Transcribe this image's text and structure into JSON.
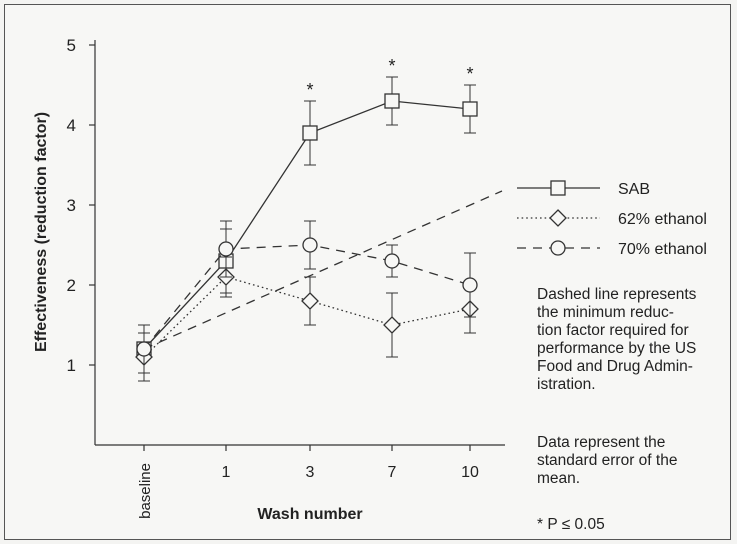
{
  "chart_data": {
    "type": "line",
    "title": "",
    "xlabel": "Wash number",
    "ylabel": "Effectiveness (reduction factor)",
    "categories": [
      "baseline",
      "1",
      "3",
      "7",
      "10"
    ],
    "ylim": [
      0,
      5
    ],
    "yticks": [
      1,
      2,
      3,
      4,
      5
    ],
    "grid": false,
    "legend_position": "right",
    "series": [
      {
        "name": "SAB",
        "marker": "square",
        "dash": "solid",
        "values": [
          1.2,
          2.3,
          3.9,
          4.3,
          4.2
        ],
        "error": [
          0.3,
          0.4,
          0.4,
          0.3,
          0.3
        ],
        "significant": [
          false,
          false,
          true,
          true,
          true
        ]
      },
      {
        "name": "62% ethanol",
        "marker": "diamond",
        "dash": "dotted",
        "values": [
          1.1,
          2.1,
          1.8,
          1.5,
          1.7
        ],
        "error": [
          0.3,
          0.25,
          0.3,
          0.4,
          0.3
        ],
        "significant": [
          false,
          false,
          false,
          false,
          false
        ]
      },
      {
        "name": "70% ethanol",
        "marker": "circle",
        "dash": "dashed",
        "values": [
          1.2,
          2.45,
          2.5,
          2.3,
          2.0
        ],
        "error": [
          0.3,
          0.35,
          0.3,
          0.2,
          0.4
        ],
        "significant": [
          false,
          false,
          false,
          false,
          false
        ]
      }
    ],
    "reference_line": {
      "x": [
        "baseline",
        "10"
      ],
      "values": [
        1.2,
        3.1
      ],
      "dash": "dashed"
    },
    "significance_marker": "*",
    "notes": [
      "Dashed line represents\nthe minimum reduc-\ntion factor required for\nperformance by the US\nFood and Drug Admin-\nistration.",
      "Data represent the\nstandard error of the\nmean.",
      "* P ≤ 0.05"
    ]
  }
}
